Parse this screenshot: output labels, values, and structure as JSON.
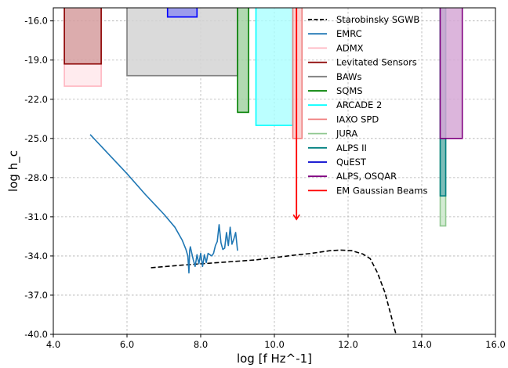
{
  "chart_data": {
    "type": "line",
    "title": "",
    "xlabel": "log [f Hz^-1]",
    "ylabel": "log h_c",
    "xlim": [
      4.0,
      16.0
    ],
    "ylim": [
      -40.0,
      -15.0
    ],
    "x_ticks": [
      4.0,
      6.0,
      8.0,
      10.0,
      12.0,
      14.0,
      16.0
    ],
    "y_ticks": [
      -16.0,
      -19.0,
      -22.0,
      -25.0,
      -28.0,
      -31.0,
      -34.0,
      -37.0,
      -40.0
    ],
    "grid": true,
    "legend_position": "top-right",
    "legend": [
      {
        "name": "Starobinsky SGWB",
        "color": "#000000",
        "style": "dashed"
      },
      {
        "name": "EMRC",
        "color": "#1f77b4",
        "style": "solid"
      },
      {
        "name": "ADMX",
        "color": "#ffb6c1",
        "style": "solid"
      },
      {
        "name": "Levitated Sensors",
        "color": "#8b0000",
        "style": "solid"
      },
      {
        "name": "BAWs",
        "color": "#808080",
        "style": "solid"
      },
      {
        "name": "SQMS",
        "color": "#008000",
        "style": "solid"
      },
      {
        "name": "ARCADE 2",
        "color": "#00ffff",
        "style": "solid"
      },
      {
        "name": "IAXO SPD",
        "color": "#f08080",
        "style": "solid"
      },
      {
        "name": "JURA",
        "color": "#90c890",
        "style": "solid"
      },
      {
        "name": "ALPS II",
        "color": "#008080",
        "style": "solid"
      },
      {
        "name": "QuEST",
        "color": "#0000cd",
        "style": "solid"
      },
      {
        "name": "ALPS, OSQAR",
        "color": "#800080",
        "style": "solid"
      },
      {
        "name": "EM Gaussian Beams",
        "color": "#ff0000",
        "style": "solid"
      }
    ],
    "regions": [
      {
        "name": "ADMX",
        "x0": 4.3,
        "x1": 5.3,
        "y_bottom": -21.0,
        "edge": "#ffb6c1",
        "fill": "#ffdde3",
        "alpha": 0.6
      },
      {
        "name": "Levitated Sensors",
        "x0": 4.3,
        "x1": 5.3,
        "y_bottom": -19.3,
        "edge": "#8b0000",
        "fill": "#c98a8a",
        "alpha": 0.65
      },
      {
        "name": "BAWs",
        "x0": 6.0,
        "x1": 9.0,
        "y_bottom": -20.2,
        "edge": "#808080",
        "fill": "#d3d3d3",
        "alpha": 0.85
      },
      {
        "name": "QuEST",
        "x0": 7.1,
        "x1": 7.9,
        "y_bottom": -15.7,
        "edge": "#0000ff",
        "fill": "#8c8cf0",
        "alpha": 0.8
      },
      {
        "name": "SQMS",
        "x0": 9.0,
        "x1": 9.3,
        "y_bottom": -23.0,
        "edge": "#008000",
        "fill": "#9ed09e",
        "alpha": 0.8
      },
      {
        "name": "ARCADE 2",
        "x0": 9.5,
        "x1": 10.5,
        "y_bottom": -24.0,
        "edge": "#00ffff",
        "fill": "#aaffff",
        "alpha": 0.8
      },
      {
        "name": "IAXO SPD",
        "x0": 10.5,
        "x1": 10.75,
        "y_bottom": -25.0,
        "edge": "#f08080",
        "fill": "#f8c0c0",
        "alpha": 0.7
      },
      {
        "name": "JURA",
        "x0": 14.5,
        "x1": 14.65,
        "y_bottom": -31.7,
        "edge": "#90c890",
        "fill": "#c8e6c8",
        "alpha": 0.8
      },
      {
        "name": "ALPS II",
        "x0": 14.5,
        "x1": 14.65,
        "y_bottom": -29.4,
        "edge": "#008080",
        "fill": "#66b2b2",
        "alpha": 0.8
      },
      {
        "name": "ALPS, OSQAR",
        "x0": 14.5,
        "x1": 15.1,
        "y_bottom": -25.0,
        "edge": "#800080",
        "fill": "#d6a8d6",
        "alpha": 0.85
      }
    ],
    "arrow": {
      "name": "EM Gaussian Beams",
      "x": 10.6,
      "y_top": -15.0,
      "y_bottom": -31.2,
      "color": "#ff0000"
    },
    "series": [
      {
        "name": "Starobinsky SGWB",
        "color": "#000000",
        "style": "dashed",
        "x": [
          6.65,
          7.5,
          8.5,
          9.5,
          10.5,
          11.0,
          11.5,
          11.8,
          12.1,
          12.4,
          12.6,
          12.8,
          13.0,
          13.15,
          13.3
        ],
        "y": [
          -34.9,
          -34.7,
          -34.5,
          -34.3,
          -33.95,
          -33.8,
          -33.6,
          -33.55,
          -33.6,
          -33.85,
          -34.2,
          -35.3,
          -36.8,
          -38.4,
          -40.0
        ]
      },
      {
        "name": "EMRC",
        "color": "#1f77b4",
        "style": "solid",
        "x": [
          5.0,
          5.5,
          6.0,
          6.5,
          7.0,
          7.3,
          7.5,
          7.6,
          7.65,
          7.68,
          7.7,
          7.72,
          7.75,
          7.8,
          7.85,
          7.9,
          7.95,
          8.0,
          8.05,
          8.1,
          8.15,
          8.2,
          8.25,
          8.3,
          8.35,
          8.4,
          8.45,
          8.5,
          8.55,
          8.6,
          8.65,
          8.7,
          8.75,
          8.8,
          8.85,
          8.9,
          8.95,
          9.0
        ],
        "y": [
          -24.7,
          -26.2,
          -27.7,
          -29.3,
          -30.8,
          -31.8,
          -32.8,
          -33.5,
          -34.0,
          -35.3,
          -33.6,
          -33.3,
          -33.7,
          -34.3,
          -34.8,
          -33.9,
          -34.6,
          -33.8,
          -34.8,
          -33.9,
          -34.5,
          -33.8,
          -33.9,
          -34.0,
          -33.8,
          -33.2,
          -32.9,
          -31.6,
          -33.0,
          -33.5,
          -33.4,
          -32.2,
          -33.2,
          -31.8,
          -33.1,
          -32.7,
          -32.2,
          -33.6
        ]
      }
    ]
  }
}
